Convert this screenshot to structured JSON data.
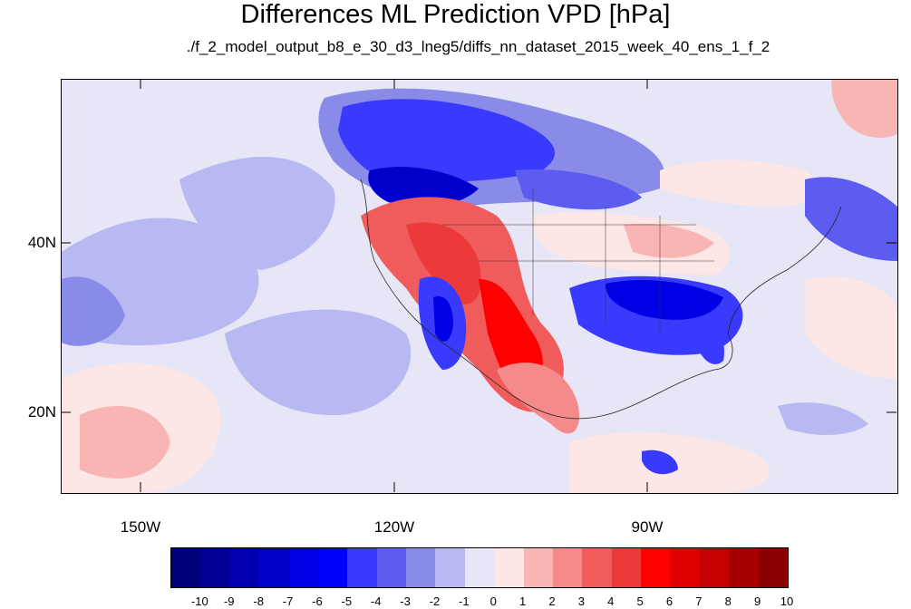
{
  "title": "Differences ML Prediction VPD [hPa]",
  "subtitle": "./f_2_model_output_b8_e_30_d3_lneg5/diffs_nn_dataset_2015_week_40_ens_1_f_2",
  "map": {
    "lon_range": [
      -160,
      -62
    ],
    "lat_range": [
      10,
      59
    ],
    "lat_labels": [
      "40N",
      "20N"
    ],
    "lon_labels": [
      "150W",
      "120W",
      "90W"
    ]
  },
  "colorbar": {
    "labels": [
      "-10",
      "-9",
      "-8",
      "-7",
      "-6",
      "-5",
      "-4",
      "-3",
      "-2",
      "-1",
      "0",
      "1",
      "2",
      "3",
      "4",
      "5",
      "6",
      "7",
      "8",
      "9",
      "10"
    ],
    "colors": [
      "#00007a",
      "#000094",
      "#0000b0",
      "#0000cc",
      "#0000e6",
      "#0000ff",
      "#3a3aff",
      "#5c5cf0",
      "#8a8ae8",
      "#b8b8f2",
      "#e6e6f7",
      "#fde6e6",
      "#f9b4b4",
      "#f58a8a",
      "#f05c5c",
      "#ec3a3a",
      "#ff0000",
      "#e00000",
      "#c40000",
      "#a80000",
      "#8a0000"
    ]
  }
}
